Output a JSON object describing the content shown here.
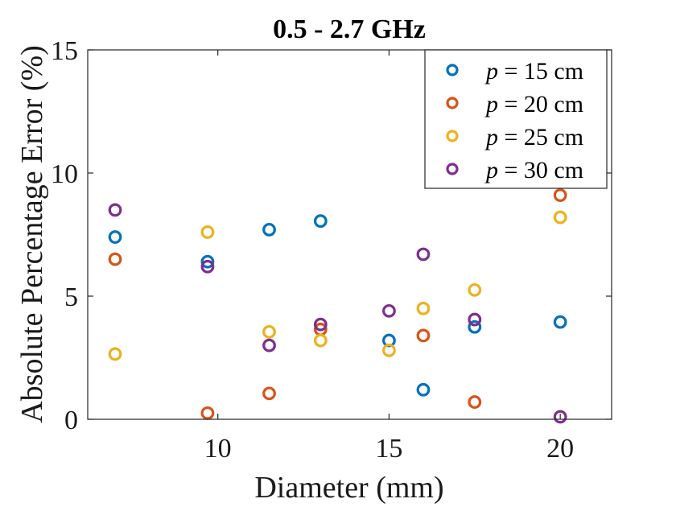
{
  "chart_data": {
    "type": "scatter",
    "title": "0.5 - 2.7 GHz",
    "xlabel": "Diameter (mm)",
    "ylabel": "Absolute Percentage Error (%)",
    "xlim": [
      6.2,
      21.5
    ],
    "ylim": [
      0,
      15
    ],
    "xticks": [
      10,
      15,
      20
    ],
    "yticks": [
      0,
      5,
      10,
      15
    ],
    "box": true,
    "grid": false,
    "legend_position": "top-right",
    "series": [
      {
        "name": "p = 15 cm",
        "legend_var": "p",
        "legend_rest": " = 15 cm",
        "color": "#0072BD",
        "x": [
          7,
          9.7,
          11.5,
          13,
          15,
          16,
          17.5,
          20
        ],
        "y": [
          7.4,
          6.4,
          7.7,
          8.05,
          3.2,
          1.2,
          3.75,
          3.95
        ]
      },
      {
        "name": "p = 20 cm",
        "legend_var": "p",
        "legend_rest": " = 20 cm",
        "color": "#D95319",
        "x": [
          7,
          9.7,
          11.5,
          13,
          16,
          17.5,
          20
        ],
        "y": [
          6.5,
          0.25,
          1.05,
          3.65,
          3.4,
          0.7,
          9.1
        ]
      },
      {
        "name": "p = 25 cm",
        "legend_var": "p",
        "legend_rest": " = 25 cm",
        "color": "#EDB120",
        "x": [
          7,
          9.7,
          11.5,
          13,
          15,
          16,
          17.5,
          20
        ],
        "y": [
          2.65,
          7.6,
          3.55,
          3.2,
          2.8,
          4.5,
          5.25,
          8.2
        ]
      },
      {
        "name": "p = 30 cm",
        "legend_var": "p",
        "legend_rest": " = 30 cm",
        "color": "#7E2F8E",
        "x": [
          7,
          9.7,
          11.5,
          13,
          15,
          16,
          17.5,
          20
        ],
        "y": [
          8.5,
          6.2,
          3.0,
          3.85,
          4.4,
          6.7,
          4.05,
          0.1
        ]
      }
    ]
  }
}
